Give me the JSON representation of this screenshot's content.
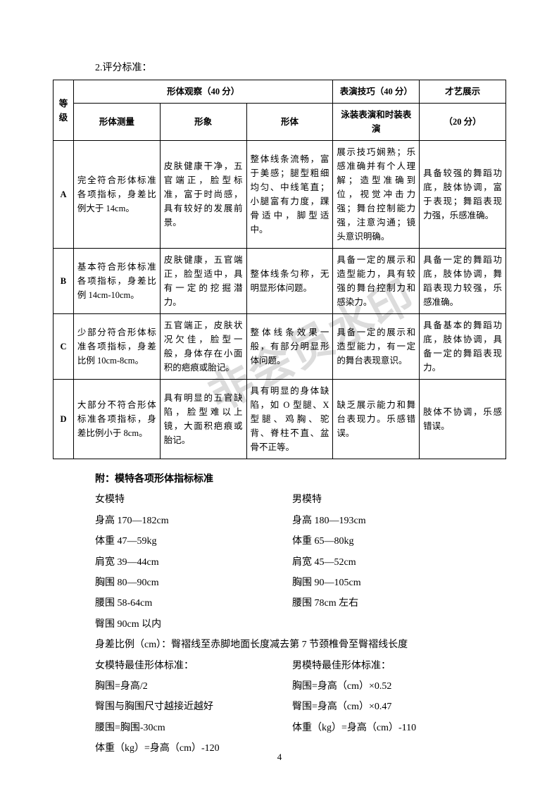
{
  "heading": "2.评分标准：",
  "table": {
    "header1": {
      "grade": "等级",
      "section1": "形体观察（40 分）",
      "section2": "表演技巧（40 分）",
      "section3": "才艺展示"
    },
    "header2": {
      "c1": "形体测量",
      "c2": "形象",
      "c3": "形体",
      "c4": "泳装表演和时装表演",
      "c5": "（20 分）"
    },
    "rows": [
      {
        "grade": "A",
        "c1": "完全符合形体标准各项指标，身差比例大于 14cm。",
        "c2": "皮肤健康干净，五官端正，脸型标准，富于时尚感，具有较好的发展前景。",
        "c3": "整体线条流畅，富于美感；腿型粗细均匀、中线笔直；小腿富有力度，踝骨适中，脚型适中。",
        "c4": "展示技巧娴熟；乐感准确并有个人理解；造型准确到位，视觉冲击力强；舞台控制能力强，注意沟通；镜头意识明确。",
        "c5": "具备较强的舞蹈功底，肢体协调，富于表现；舞蹈表现力强，乐感准确。"
      },
      {
        "grade": "B",
        "c1": "基本符合形体标准各项指标，身差比例 14cm-10cm。",
        "c2": "皮肤健康，五官端正，脸型适中，具有一定的挖掘潜力。",
        "c3": "整体线条匀称，无明显形体问题。",
        "c4": "具备一定的展示和造型能力，具有较强的舞台控制力和感染力。",
        "c5": "具备一定的舞蹈功底，肢体协调，舞蹈表现力较强，乐感准确。"
      },
      {
        "grade": "C",
        "c1": "少部分符合形体标准各项指标，身差比例 10cm-8cm。",
        "c2": "五官端正，皮肤状况欠佳，脸型一般，身体存在小面积的疤痕或胎记。",
        "c3": "整体线条效果一般，有部分明显形体问题。",
        "c4": "具备一定的展示和造型能力，有一定的舞台表现意识。",
        "c5": "具备基本的舞蹈功底，肢体协调，具备一定的舞蹈表现力。"
      },
      {
        "grade": "D",
        "c1": "大部分不符合形体标准各项指标，身差比例小于 8cm。",
        "c2": "具有明显的五官缺陷，脸型难以上镜，大面积疤痕或胎记。",
        "c3": "具有明显的身体缺陷，如 O 型腿、X 型腿、鸡胸、驼背、脊柱不直、盆骨不正等。",
        "c4": "缺乏展示能力和舞台表现力。乐感错误。",
        "c5": "肢体不协调，乐感错误。"
      }
    ]
  },
  "appendix": {
    "title": "附：模特各项形体指标标准",
    "female_title": "女模特",
    "male_title": "男模特",
    "rows": [
      {
        "left": "身高 170—182cm",
        "right": "身高 180—193cm"
      },
      {
        "left": "体重 47—59kg",
        "right": "体重 65—80kg"
      },
      {
        "left": "肩宽 39—44cm",
        "right": "肩宽 45—52cm"
      },
      {
        "left": "胸围 80—90cm",
        "right": "胸围 90—105cm"
      },
      {
        "left": "腰围 58-64cm",
        "right": "腰围 78cm 左右"
      },
      {
        "left": "臀围 90cm 以内",
        "right": ""
      }
    ],
    "ratio": "身差比例（cm）：臀褶线至赤脚地面长度减去第 7 节颈椎骨至臀褶线长度",
    "best_female": "女模特最佳形体标准：",
    "best_male": "男模特最佳形体标准：",
    "best_rows": [
      {
        "left": "胸围=身高/2",
        "right": "胸围=身高（cm）×0.52"
      },
      {
        "left": "臀围与胸围尺寸越接近越好",
        "right": "臀围=身高（cm）×0.47"
      },
      {
        "left": "腰围=胸围-30cm",
        "right": "体重（kg）=身高（cm）-110"
      },
      {
        "left": "体重（kg）=身高（cm）-120",
        "right": ""
      }
    ]
  },
  "watermark": "非会员水印",
  "page_number": "4"
}
